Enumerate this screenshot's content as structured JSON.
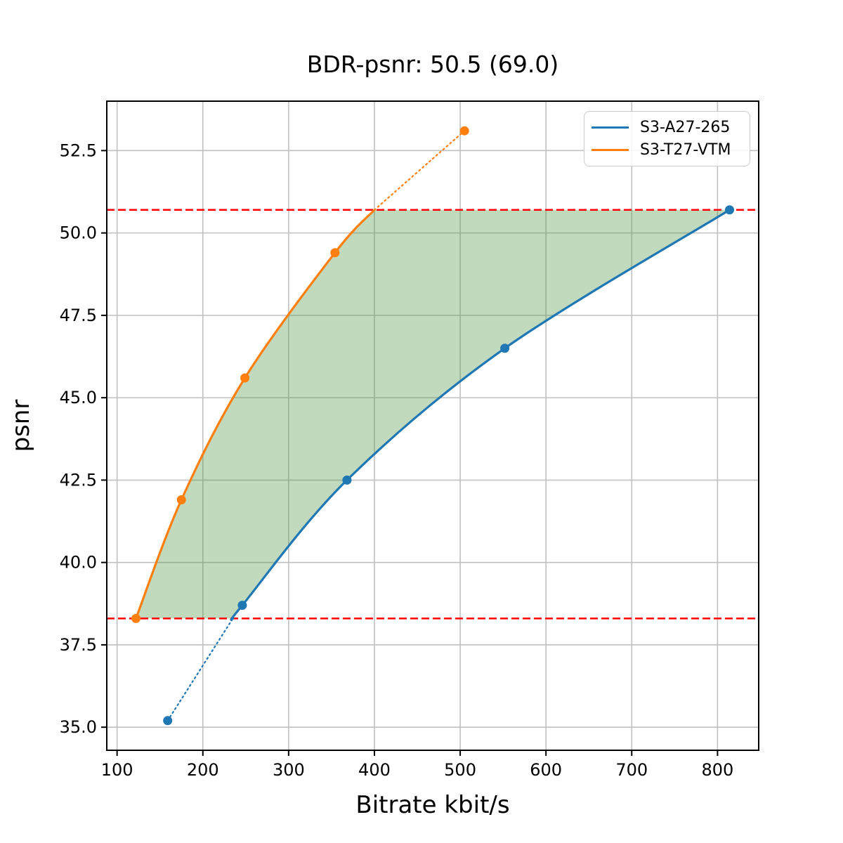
{
  "title": "BDR-psnr: 50.5 (69.0)",
  "colors": {
    "figure_bg": "#ffffff",
    "grid": "#c0c0c0",
    "spine": "#000000",
    "bd_line_red": "#ff0000",
    "region_green": "#4c9141",
    "series_blue": "#1f77b4",
    "series_orange": "#ff7f0e"
  },
  "chart_data": {
    "type": "line",
    "title": "BDR-psnr: 50.5 (69.0)",
    "xlabel": "Bitrate kbit/s",
    "ylabel": "psnr",
    "xlim": [
      88,
      848
    ],
    "ylim": [
      34.3,
      54.0
    ],
    "xticks": [
      100,
      200,
      300,
      400,
      500,
      600,
      700,
      800
    ],
    "xtick_labels": [
      "100",
      "200",
      "300",
      "400",
      "500",
      "600",
      "700",
      "800"
    ],
    "yticks": [
      35.0,
      37.5,
      40.0,
      42.5,
      45.0,
      47.5,
      50.0,
      52.5
    ],
    "ytick_labels": [
      "35.0",
      "37.5",
      "40.0",
      "42.5",
      "45.0",
      "47.5",
      "50.0",
      "52.5"
    ],
    "grid": true,
    "legend": {
      "position": "upper right",
      "entries": [
        "S3-A27-265",
        "S3-T27-VTM"
      ]
    },
    "series": [
      {
        "name": "S3-A27-265",
        "color": "#1f77b4",
        "x": [
          159,
          246,
          368,
          552,
          814
        ],
        "y": [
          35.2,
          38.7,
          42.5,
          46.5,
          50.7
        ],
        "dotted_end": "low",
        "bd_cross": {
          "x": 235,
          "y": 38.3
        }
      },
      {
        "name": "S3-T27-VTM",
        "color": "#ff7f0e",
        "x": [
          122,
          175,
          249,
          354,
          505
        ],
        "y": [
          38.3,
          41.9,
          45.6,
          49.4,
          53.1
        ],
        "dotted_end": "high",
        "bd_cross": {
          "x": 400,
          "y": 50.7
        }
      }
    ],
    "bd_lines": {
      "color": "#ff0000",
      "style": "dashed",
      "psnr_high": 50.7,
      "psnr_low": 38.3
    },
    "shaded_region": {
      "color": "#4c9141",
      "opacity": 0.35
    }
  }
}
